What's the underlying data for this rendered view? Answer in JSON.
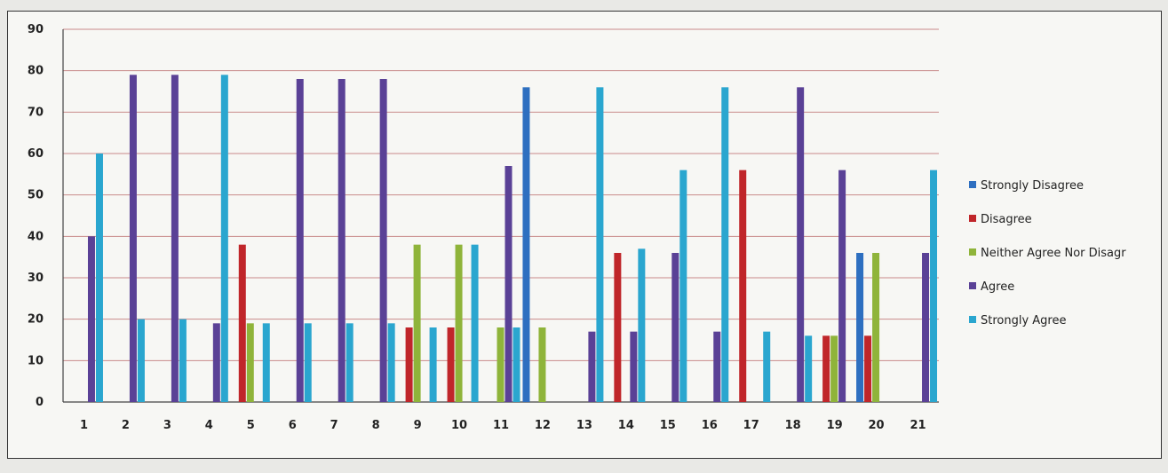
{
  "chart_data": {
    "type": "bar",
    "title": "",
    "xlabel": "",
    "ylabel": "",
    "ylim": [
      0,
      90
    ],
    "yticks": [
      0,
      10,
      20,
      30,
      40,
      50,
      60,
      70,
      80,
      90
    ],
    "grid": true,
    "legend_position": "right",
    "categories": [
      "1",
      "2",
      "3",
      "4",
      "5",
      "6",
      "7",
      "8",
      "9",
      "10",
      "11",
      "12",
      "13",
      "14",
      "15",
      "16",
      "17",
      "18",
      "19",
      "20",
      "21"
    ],
    "series": [
      {
        "name": "Strongly Disagree",
        "color": "#2e6fc0",
        "values": [
          0,
          0,
          0,
          0,
          0,
          0,
          0,
          0,
          0,
          0,
          0,
          76,
          0,
          0,
          0,
          0,
          0,
          0,
          0,
          36,
          0
        ]
      },
      {
        "name": "Disagree",
        "color": "#c0262a",
        "values": [
          0,
          0,
          0,
          0,
          38,
          0,
          0,
          0,
          18,
          18,
          0,
          0,
          0,
          36,
          0,
          0,
          56,
          0,
          16,
          16,
          0
        ]
      },
      {
        "name": "Neither Agree Nor Disagr",
        "color": "#8fb43a",
        "values": [
          0,
          0,
          0,
          0,
          19,
          0,
          0,
          0,
          38,
          38,
          18,
          18,
          0,
          0,
          0,
          0,
          0,
          0,
          16,
          36,
          0
        ]
      },
      {
        "name": "Agree",
        "color": "#5a4196",
        "values": [
          40,
          79,
          79,
          19,
          0,
          78,
          78,
          78,
          0,
          0,
          57,
          0,
          17,
          17,
          36,
          17,
          0,
          76,
          56,
          0,
          36
        ]
      },
      {
        "name": "Strongly Agree",
        "color": "#2aa6cf",
        "values": [
          60,
          20,
          20,
          79,
          19,
          19,
          19,
          19,
          18,
          38,
          18,
          0,
          76,
          37,
          56,
          76,
          17,
          16,
          0,
          0,
          56
        ]
      }
    ]
  }
}
